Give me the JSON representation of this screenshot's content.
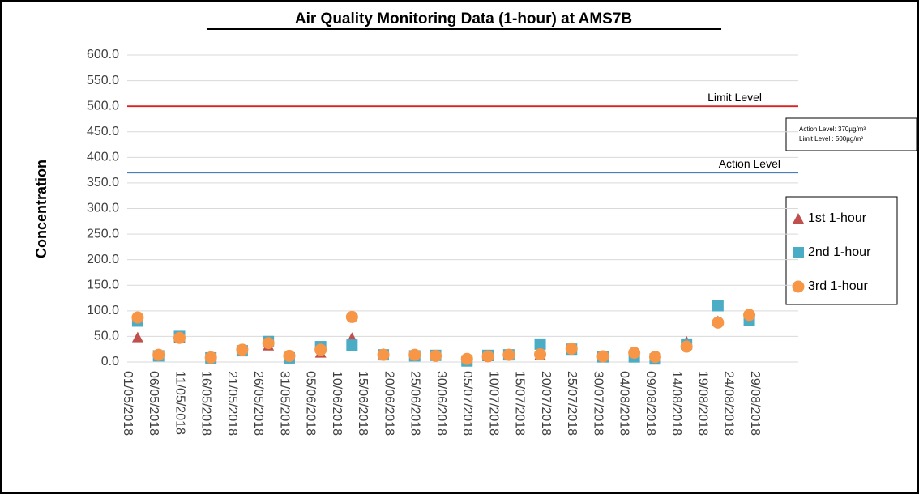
{
  "chart_data": {
    "type": "scatter",
    "title": "Air Quality Monitoring Data (1-hour) at AMS7B",
    "y_label": "Concentration",
    "x": [
      "03/05/2018",
      "07/05/2018",
      "11/05/2018",
      "17/05/2018",
      "23/05/2018",
      "28/05/2018",
      "01/06/2018",
      "07/06/2018",
      "13/06/2018",
      "19/06/2018",
      "25/06/2018",
      "29/06/2018",
      "05/07/2018",
      "09/07/2018",
      "13/07/2018",
      "19/07/2018",
      "25/07/2018",
      "31/07/2018",
      "06/08/2018",
      "10/08/2018",
      "16/08/2018",
      "22/08/2018",
      "28/08/2018"
    ],
    "series": [
      {
        "name": "1st 1-hour",
        "color": "#c0504d",
        "marker": "triangle",
        "values": [
          48,
          14,
          47,
          8,
          22,
          32,
          10,
          18,
          47,
          16,
          14,
          12,
          4,
          11,
          13,
          14,
          25,
          10,
          12,
          8,
          40,
          80,
          80
        ]
      },
      {
        "name": "2nd 1-hour",
        "color": "#4bacc6",
        "marker": "square",
        "values": [
          80,
          12,
          50,
          8,
          22,
          40,
          8,
          30,
          33,
          14,
          12,
          13,
          2,
          13,
          14,
          35,
          25,
          10,
          10,
          6,
          35,
          110,
          82
        ]
      },
      {
        "name": "3rd 1-hour",
        "color": "#f79646",
        "marker": "circle",
        "values": [
          87,
          14,
          47,
          9,
          24,
          37,
          12,
          24,
          88,
          14,
          14,
          12,
          6,
          11,
          14,
          15,
          26,
          11,
          18,
          10,
          30,
          77,
          92
        ]
      }
    ],
    "xlim": [
      "01/05/2018",
      "29/08/2018"
    ],
    "xticks": [
      "01/05/2018",
      "06/05/2018",
      "11/05/2018",
      "16/05/2018",
      "21/05/2018",
      "26/05/2018",
      "31/05/2018",
      "05/06/2018",
      "10/06/2018",
      "15/06/2018",
      "20/06/2018",
      "25/06/2018",
      "30/06/2018",
      "05/07/2018",
      "10/07/2018",
      "15/07/2018",
      "20/07/2018",
      "25/07/2018",
      "30/07/2018",
      "04/08/2018",
      "09/08/2018",
      "14/08/2018",
      "19/08/2018",
      "24/08/2018",
      "29/08/2018"
    ],
    "ylim": [
      0,
      600
    ],
    "yticks": [
      {
        "value": 0,
        "label": "0.0"
      },
      {
        "value": 50,
        "label": "50.0"
      },
      {
        "value": 100,
        "label": "100.0"
      },
      {
        "value": 150,
        "label": "150.0"
      },
      {
        "value": 200,
        "label": "200.0"
      },
      {
        "value": 250,
        "label": "250.0"
      },
      {
        "value": 300,
        "label": "300.0"
      },
      {
        "value": 350,
        "label": "350.0"
      },
      {
        "value": 400,
        "label": "400.0"
      },
      {
        "value": 450,
        "label": "450.0"
      },
      {
        "value": 500,
        "label": "500.0"
      },
      {
        "value": 550,
        "label": "550.0"
      },
      {
        "value": 600,
        "label": "600.0"
      }
    ],
    "grid": true,
    "reference_lines": [
      {
        "label": "Limit Level",
        "value": 500,
        "color": "#e02020"
      },
      {
        "label": "Action Level",
        "value": 370,
        "color": "#4a7ebb"
      }
    ],
    "note": [
      "Action Level: 370µg/m³",
      "Limit Level : 500µg/m³"
    ],
    "legend": "right"
  }
}
